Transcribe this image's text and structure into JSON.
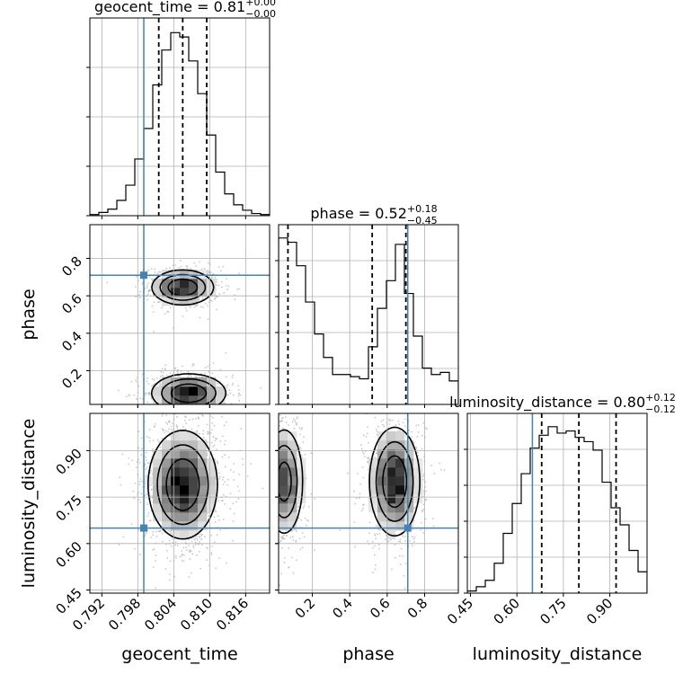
{
  "chart_data": {
    "type": "corner",
    "parameters": [
      "geocent_time",
      "phase",
      "luminosity_distance"
    ],
    "truths": {
      "geocent_time": 0.799,
      "phase": 0.71,
      "luminosity_distance": 0.65
    },
    "panels": [
      {
        "id": "geocent_time",
        "type": "histogram",
        "title": {
          "main": "geocent_time = 0.81",
          "plus": "+0.00",
          "minus": "−0.00"
        },
        "xlim": [
          0.79,
          0.82
        ],
        "quantiles": [
          0.8015,
          0.8055,
          0.8095
        ],
        "truth": 0.799,
        "yticks_count": 4,
        "bins": [
          0.79,
          0.7915,
          0.793,
          0.7945,
          0.796,
          0.7975,
          0.799,
          0.8005,
          0.802,
          0.8035,
          0.805,
          0.8065,
          0.808,
          0.8095,
          0.811,
          0.8125,
          0.814,
          0.8155,
          0.817,
          0.8185,
          0.82
        ],
        "counts": [
          0.5,
          1.5,
          3,
          7,
          14,
          26,
          40,
          60,
          76,
          84,
          82,
          71,
          56,
          37,
          20,
          10,
          5,
          2.5,
          1,
          0.5
        ]
      },
      {
        "id": "phase-vs-geocent_time",
        "type": "2d",
        "xlim": [
          0.79,
          0.82
        ],
        "ylim": [
          0.02,
          0.98
        ],
        "yticks": [
          0.2,
          0.4,
          0.6,
          0.8
        ],
        "ylabel": "phase",
        "truth": [
          0.799,
          0.71
        ],
        "modes": [
          {
            "x": 0.8055,
            "y": 0.645,
            "sx": 0.0025,
            "sy": 0.045,
            "w": 0.5
          },
          {
            "x": 0.8065,
            "y": 0.08,
            "sx": 0.003,
            "sy": 0.05,
            "w": 0.5
          }
        ]
      },
      {
        "id": "phase",
        "type": "histogram",
        "title": {
          "main": "phase = 0.52",
          "plus": "+0.18",
          "minus": "−0.45"
        },
        "xlim": [
          0.02,
          0.98
        ],
        "quantiles": [
          0.07,
          0.52,
          0.7
        ],
        "truth": 0.71,
        "yticks_count": 5,
        "bins": [
          0.02,
          0.068,
          0.116,
          0.164,
          0.212,
          0.26,
          0.308,
          0.356,
          0.404,
          0.452,
          0.5,
          0.548,
          0.596,
          0.644,
          0.692,
          0.74,
          0.788,
          0.836,
          0.884,
          0.932,
          0.98
        ],
        "counts": [
          78,
          76,
          65,
          48,
          33,
          22,
          14,
          14,
          13,
          12,
          27,
          45,
          58,
          75,
          52,
          32,
          17,
          14,
          15,
          11
        ]
      },
      {
        "id": "luminosity_distance-vs-geocent_time",
        "type": "2d",
        "xlim": [
          0.79,
          0.82
        ],
        "ylim": [
          0.44,
          1.02
        ],
        "yticks": [
          0.45,
          0.6,
          0.75,
          0.9
        ],
        "ylabel": "luminosity_distance",
        "xticks": [
          0.792,
          0.798,
          0.804,
          0.81,
          0.816
        ],
        "xlabel": "geocent_time",
        "truth": [
          0.799,
          0.65
        ],
        "modes": [
          {
            "x": 0.8055,
            "y": 0.79,
            "sx": 0.0028,
            "sy": 0.085,
            "w": 1.0
          }
        ]
      },
      {
        "id": "luminosity_distance-vs-phase",
        "type": "2d",
        "xlim": [
          0.02,
          0.98
        ],
        "ylim": [
          0.44,
          1.02
        ],
        "xticks": [
          0.2,
          0.4,
          0.6,
          0.8
        ],
        "xlabel": "phase",
        "truth": [
          0.71,
          0.65
        ],
        "modes": [
          {
            "x": 0.05,
            "y": 0.8,
            "sx": 0.05,
            "sy": 0.085,
            "w": 0.45
          },
          {
            "x": 0.64,
            "y": 0.8,
            "sx": 0.065,
            "sy": 0.085,
            "w": 0.55
          }
        ]
      },
      {
        "id": "luminosity_distance",
        "type": "histogram",
        "title": {
          "main": "luminosity_distance = 0.80",
          "plus": "+0.12",
          "minus": "−0.12"
        },
        "xlim": [
          0.44,
          1.02
        ],
        "xticks": [
          0.45,
          0.6,
          0.75,
          0.9
        ],
        "xlabel": "luminosity_distance",
        "quantiles": [
          0.68,
          0.8,
          0.92
        ],
        "truth": 0.65,
        "yticks_count": 5,
        "bins": [
          0.44,
          0.469,
          0.498,
          0.527,
          0.556,
          0.585,
          0.614,
          0.643,
          0.672,
          0.701,
          0.73,
          0.759,
          0.788,
          0.817,
          0.846,
          0.875,
          0.904,
          0.933,
          0.962,
          0.991,
          1.02
        ],
        "counts": [
          1,
          3,
          6,
          14,
          28,
          42,
          56,
          68,
          74,
          78,
          75,
          76,
          73,
          71,
          67,
          52,
          40,
          32,
          20,
          10
        ]
      }
    ]
  }
}
